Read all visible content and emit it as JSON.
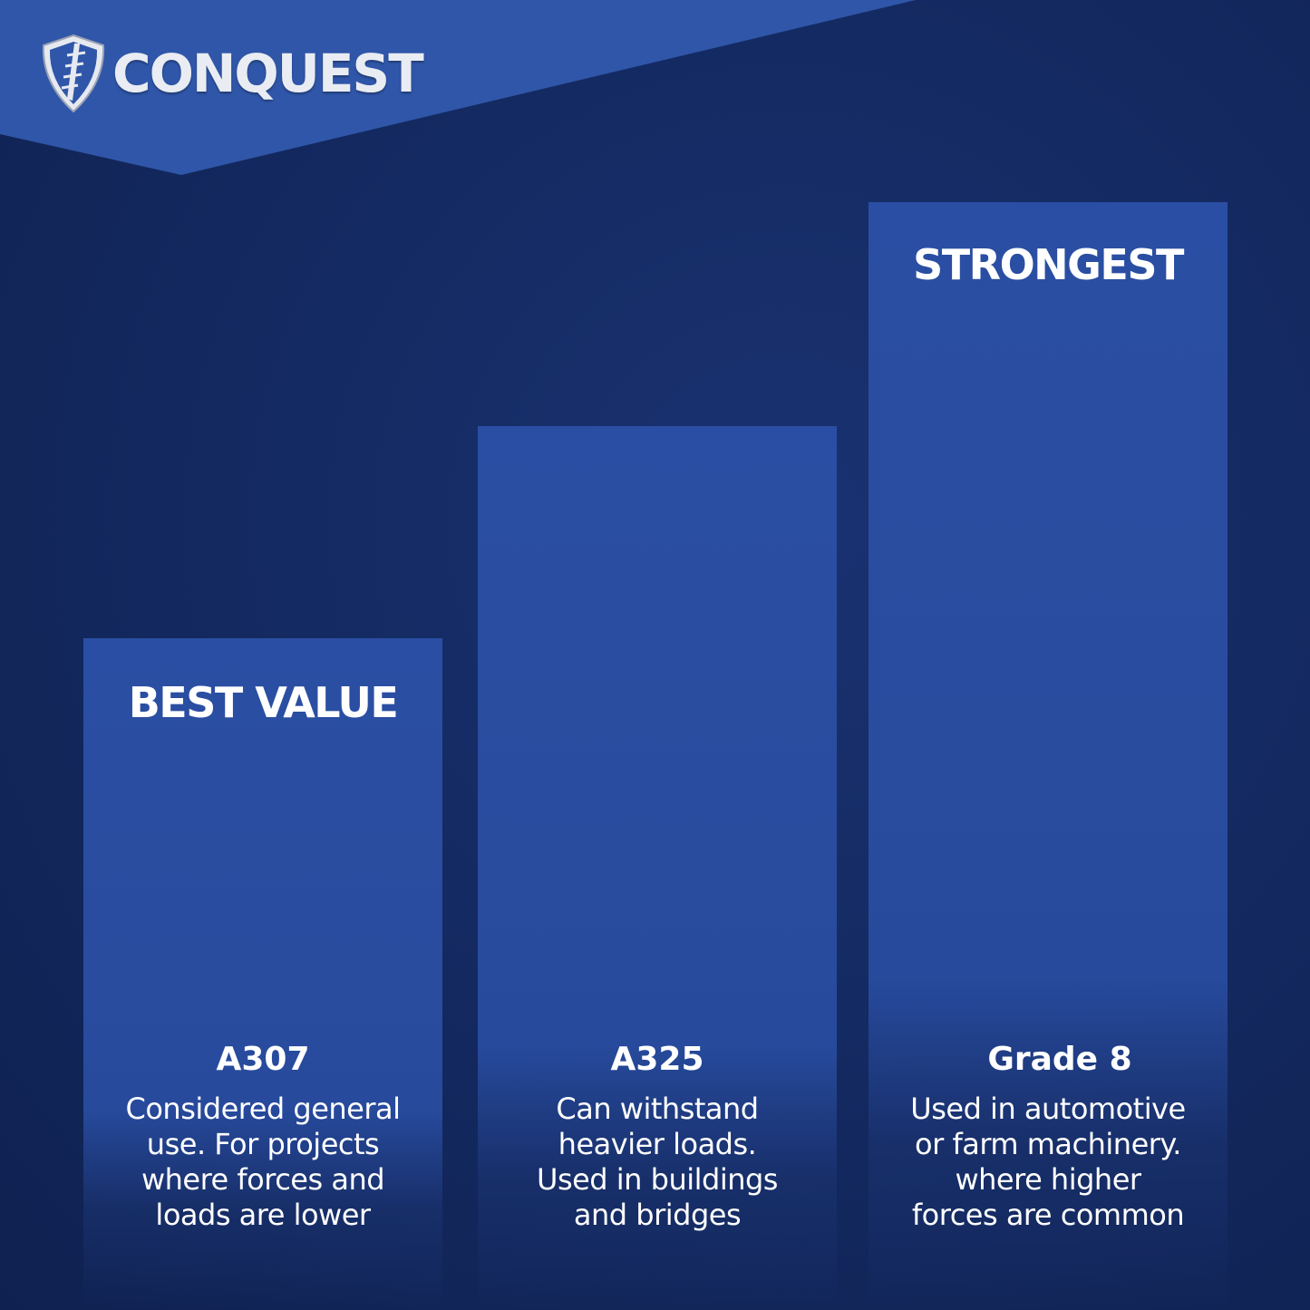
{
  "brand": {
    "name": "CONQUEST",
    "icon": "shield-bolt-icon",
    "accent": "#2f56a8",
    "background": "#142a62"
  },
  "columns": [
    {
      "tag": "BEST VALUE",
      "grade": "A307",
      "description": [
        "Considered general",
        "use. For projects",
        "where forces and",
        "loads are lower"
      ]
    },
    {
      "tag": "",
      "grade": "A325",
      "description": [
        "Can withstand",
        "heavier loads.",
        "Used in buildings",
        "and bridges"
      ]
    },
    {
      "tag": "STRONGEST",
      "grade": "Grade 8",
      "description": [
        "Used in automotive",
        "or farm machinery.",
        "where higher",
        "forces are common"
      ]
    }
  ]
}
